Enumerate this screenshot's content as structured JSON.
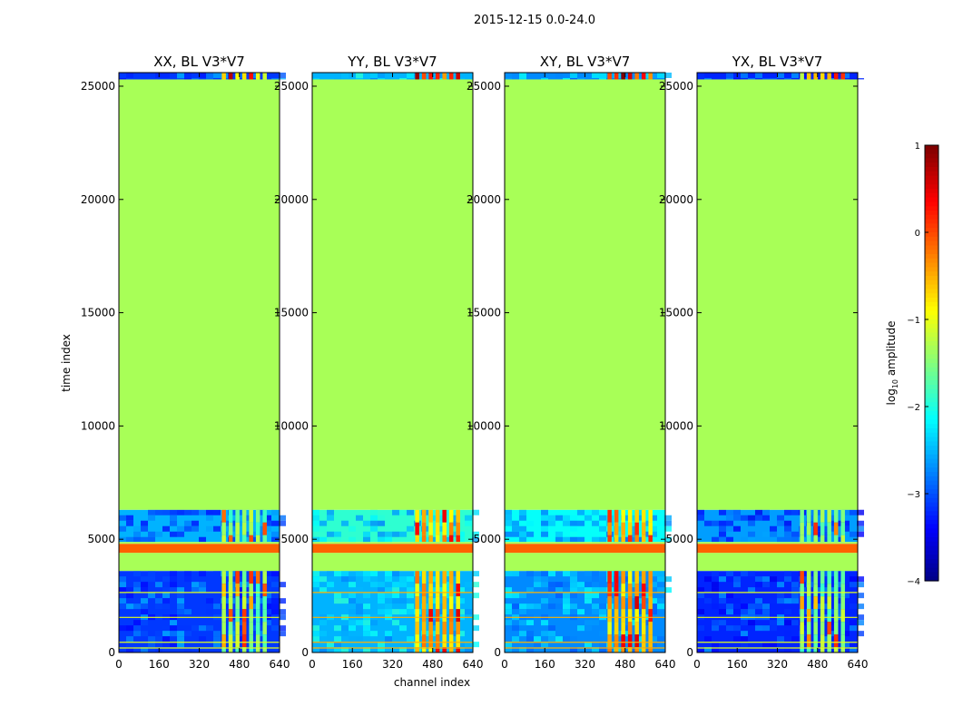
{
  "figure": {
    "suptitle": "2015-12-15 0.0-24.0",
    "xlabel": "channel index",
    "ylabel": "time index"
  },
  "colorbar": {
    "label": "log10 amplitude",
    "label_main": "log",
    "label_sub": "10",
    "label_rest": " amplitude",
    "vmin": -4,
    "vmax": 1,
    "ticks": [
      1,
      0,
      -1,
      -2,
      -3,
      -4
    ],
    "tick_labels": [
      "1",
      "0",
      "−1",
      "−2",
      "−3",
      "−4"
    ],
    "colormap": "jet"
  },
  "chart_data": {
    "type": "heatmap",
    "x_range": [
      0,
      640
    ],
    "y_range": [
      0,
      25600
    ],
    "x_ticks": [
      0,
      160,
      320,
      480,
      640
    ],
    "y_ticks": [
      0,
      5000,
      10000,
      15000,
      20000,
      25000
    ],
    "x_tick_labels": [
      "0",
      "160",
      "320",
      "480",
      "640"
    ],
    "y_tick_labels": [
      "0",
      "5000",
      "10000",
      "15000",
      "20000",
      "25000"
    ],
    "panels": [
      {
        "title": "XX, BL V3*V7",
        "base_level": -3.1,
        "band_level": -1.5,
        "hot_level": -0.2
      },
      {
        "title": "YY, BL V3*V7",
        "base_level": -2.5,
        "band_level": -0.6,
        "hot_level": 0.3
      },
      {
        "title": "XY, BL V3*V7",
        "base_level": -2.7,
        "band_level": -0.6,
        "hot_level": 0.3
      },
      {
        "title": "YX, BL V3*V7",
        "base_level": -3.2,
        "band_level": -1.5,
        "hot_level": -0.2
      }
    ],
    "regions": [
      {
        "name": "flagged",
        "t_start": 6300,
        "t_end": 25300,
        "level": -1.3
      },
      {
        "name": "flagged",
        "t_start": 3600,
        "t_end": 4400,
        "level": -1.3
      },
      {
        "name": "gap",
        "t_start": 4400,
        "t_end": 4800,
        "level": -0.1
      },
      {
        "name": "gap",
        "t_start": 4800,
        "t_end": 4880,
        "level": -1.3
      }
    ],
    "rfi_channel_band": [
      410,
      600
    ]
  }
}
